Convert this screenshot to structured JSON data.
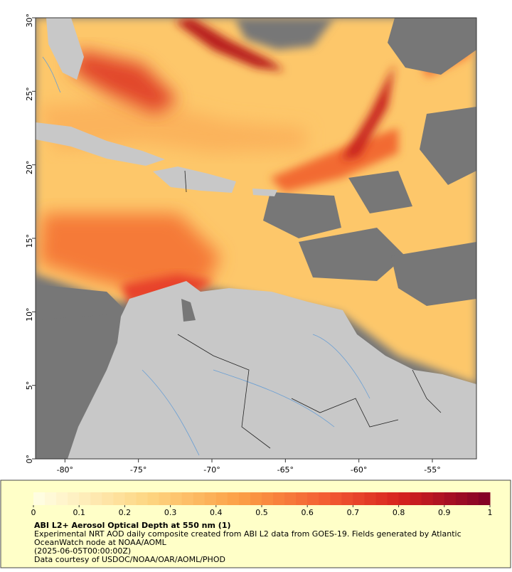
{
  "map": {
    "xlim": [
      -82,
      -52
    ],
    "ylim": [
      0,
      30
    ],
    "xticks": [
      {
        "value": -80,
        "label": "-80°"
      },
      {
        "value": -75,
        "label": "-75°"
      },
      {
        "value": -70,
        "label": "-70°"
      },
      {
        "value": -65,
        "label": "-65°"
      },
      {
        "value": -60,
        "label": "-60°"
      },
      {
        "value": -55,
        "label": "-55°"
      }
    ],
    "yticks": [
      {
        "value": 0,
        "label": "0°"
      },
      {
        "value": 5,
        "label": "5°"
      },
      {
        "value": 10,
        "label": "10°"
      },
      {
        "value": 15,
        "label": "15°"
      },
      {
        "value": 20,
        "label": "20°"
      },
      {
        "value": 25,
        "label": "25°"
      },
      {
        "value": 30,
        "label": "30°"
      }
    ]
  },
  "colorbar": {
    "lim": [
      0,
      1
    ],
    "ticks": [
      0,
      0.1,
      0.2,
      0.3,
      0.4,
      0.5,
      0.6,
      0.7,
      0.8,
      0.9,
      1
    ]
  },
  "caption": {
    "title": "ABI L2+ Aerosol Optical Depth at 550 nm (1)",
    "lines": [
      "Experimental NRT AOD daily composite created from ABI L2 data from GOES-19. Fields generated by Atlantic",
      "OceanWatch node at NOAA/AOML",
      "(2025-06-05T00:00:00Z)",
      "Data courtesy of USDOC/NOAA/OAR/AOML/PHOD"
    ]
  }
}
